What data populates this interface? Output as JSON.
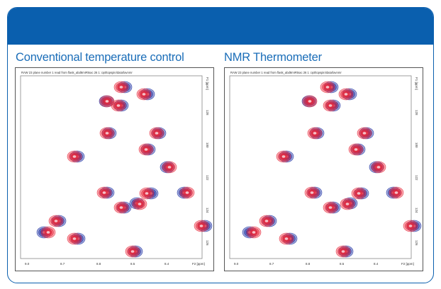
{
  "headings": {
    "left": "Conventional temperature control",
    "right": "NMR Thermometer"
  },
  "colors": {
    "frame": "#0a5fae",
    "heading": "#1a6db8",
    "red_spectrum": "#e8283a",
    "blue_spectrum": "#2a3ca8"
  },
  "panel_meta": {
    "caption": "RAW 23 plane number 1 read from flask_abd8mIRtsac 26 1 :opt/topspin/data/lavnmr",
    "x_ticks": [
      "9.0",
      "8.7",
      "8.8",
      "8.5",
      "8.4"
    ],
    "x_axis_label": "F2 [ppm]",
    "y_ticks": [
      "128",
      "100",
      "122",
      "124",
      "126"
    ],
    "y_axis_label": "F1 [ppm]"
  }
}
